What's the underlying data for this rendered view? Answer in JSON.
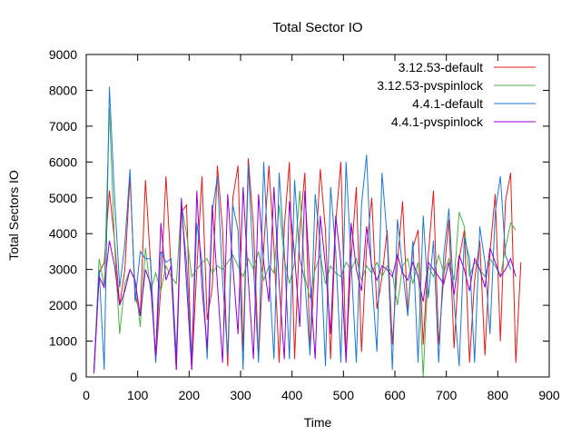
{
  "chart_data": {
    "type": "line",
    "title": "Total Sector IO",
    "xlabel": "Time",
    "ylabel": "Total Sectors IO",
    "xlim": [
      0,
      900
    ],
    "ylim": [
      0,
      9000
    ],
    "xticks": [
      0,
      100,
      200,
      300,
      400,
      500,
      600,
      700,
      800,
      900
    ],
    "yticks": [
      0,
      1000,
      2000,
      3000,
      4000,
      5000,
      6000,
      7000,
      8000,
      9000
    ],
    "xtick_labels": [
      "0",
      "100",
      "200",
      "300",
      "400",
      "500",
      "600",
      "700",
      "800",
      "900"
    ],
    "ytick_labels": [
      "0",
      "1000",
      "2000",
      "3000",
      "4000",
      "5000",
      "6000",
      "7000",
      "8000",
      "9000"
    ],
    "grid": false,
    "legend_position": "top-right",
    "series": [
      {
        "name": "3.12.53-default",
        "color": "#e41a1c",
        "x": [
          15,
          25,
          35,
          45,
          55,
          65,
          75,
          85,
          95,
          105,
          115,
          125,
          135,
          145,
          155,
          165,
          175,
          185,
          195,
          205,
          215,
          225,
          235,
          245,
          255,
          265,
          275,
          285,
          295,
          305,
          315,
          325,
          335,
          345,
          355,
          365,
          375,
          385,
          395,
          405,
          415,
          425,
          435,
          445,
          455,
          465,
          475,
          485,
          495,
          505,
          515,
          525,
          535,
          545,
          555,
          565,
          575,
          585,
          595,
          605,
          615,
          625,
          635,
          645,
          655,
          665,
          675,
          685,
          695,
          705,
          715,
          725,
          735,
          745,
          755,
          765,
          775,
          785,
          795,
          805,
          815,
          825,
          835,
          845
        ],
        "y": [
          200,
          2900,
          3200,
          5200,
          3800,
          2000,
          3000,
          5600,
          2300,
          1700,
          5500,
          3200,
          400,
          2500,
          5600,
          3000,
          200,
          4600,
          4800,
          200,
          3000,
          5600,
          1600,
          2500,
          5900,
          4100,
          300,
          5000,
          5900,
          700,
          6100,
          4200,
          500,
          3600,
          5900,
          3600,
          400,
          4200,
          6000,
          500,
          4100,
          5700,
          700,
          3300,
          5800,
          4100,
          500,
          4300,
          6000,
          500,
          3300,
          5300,
          700,
          3600,
          5000,
          1900,
          2800,
          4100,
          900,
          3200,
          4900,
          1800,
          3600,
          4100,
          900,
          3400,
          5200,
          900,
          2800,
          4400,
          800,
          3300,
          4100,
          400,
          2700,
          3800,
          600,
          3500,
          5100,
          1000,
          4900,
          5700,
          400,
          3200
        ]
      },
      {
        "name": "3.12.53-pvspinlock",
        "color": "#4daf4a",
        "x": [
          15,
          25,
          35,
          45,
          55,
          65,
          75,
          85,
          95,
          105,
          115,
          125,
          135,
          145,
          155,
          165,
          175,
          185,
          195,
          205,
          215,
          225,
          235,
          245,
          255,
          265,
          275,
          285,
          295,
          305,
          315,
          325,
          335,
          345,
          355,
          365,
          375,
          385,
          395,
          405,
          415,
          425,
          435,
          445,
          455,
          465,
          475,
          485,
          495,
          505,
          515,
          525,
          535,
          545,
          555,
          565,
          575,
          585,
          595,
          605,
          615,
          625,
          635,
          645,
          655,
          665,
          675,
          685,
          695,
          705,
          715,
          725,
          735,
          745,
          755,
          765,
          775,
          785,
          795,
          805,
          815,
          825,
          835
        ],
        "y": [
          100,
          3300,
          2500,
          7500,
          3700,
          1200,
          2600,
          3000,
          2700,
          1400,
          3600,
          2400,
          2900,
          2400,
          3100,
          2800,
          2600,
          4800,
          4000,
          2800,
          3000,
          3200,
          3300,
          2900,
          3100,
          3000,
          3200,
          3400,
          3100,
          2800,
          3300,
          3000,
          3500,
          2700,
          3100,
          2900,
          4800,
          3300,
          2600,
          3200,
          5200,
          2800,
          2200,
          3000,
          3400,
          2600,
          3100,
          2900,
          2800,
          3200,
          3000,
          3300,
          2700,
          3100,
          2900,
          3200,
          2800,
          3100,
          2900,
          2000,
          3100,
          3300,
          2600,
          3200,
          0,
          3100,
          2800,
          3400,
          2900,
          3300,
          2700,
          4600,
          4200,
          2800,
          3200,
          3000,
          2800,
          3300,
          3100,
          2800,
          3600,
          4300,
          4100
        ]
      },
      {
        "name": "4.4.1-default",
        "color": "#1f77d4",
        "x": [
          15,
          25,
          35,
          45,
          55,
          65,
          75,
          85,
          95,
          105,
          115,
          125,
          135,
          145,
          155,
          165,
          175,
          185,
          195,
          205,
          215,
          225,
          235,
          245,
          255,
          265,
          275,
          285,
          295,
          305,
          315,
          325,
          335,
          345,
          355,
          365,
          375,
          385,
          395,
          405,
          415,
          425,
          435,
          445,
          455,
          465,
          475,
          485,
          495,
          505,
          515,
          525,
          535,
          545,
          555,
          565,
          575,
          585,
          595,
          605,
          615,
          625,
          635,
          645,
          655,
          665,
          675,
          685,
          695,
          705,
          715,
          725,
          735,
          745,
          755,
          765,
          775,
          785,
          795,
          805,
          815,
          825
        ],
        "y": [
          200,
          3000,
          200,
          8100,
          5000,
          2500,
          3700,
          5800,
          2100,
          3500,
          3300,
          3300,
          400,
          3500,
          3200,
          3300,
          600,
          4700,
          3200,
          500,
          4300,
          3200,
          500,
          4600,
          5600,
          2700,
          600,
          4800,
          4100,
          200,
          5900,
          3100,
          400,
          6000,
          3000,
          500,
          5700,
          3500,
          500,
          5500,
          3300,
          2700,
          600,
          5100,
          3700,
          300,
          5300,
          3500,
          400,
          6000,
          3200,
          400,
          4800,
          6200,
          2800,
          700,
          5700,
          3900,
          200,
          4400,
          3000,
          1700,
          3800,
          400,
          4500,
          2200,
          3800,
          400,
          3400,
          4700,
          2100,
          300,
          3900,
          3300,
          400,
          4200,
          3200,
          1200,
          4600,
          5600,
          3400,
          3000
        ]
      },
      {
        "name": "4.4.1-pvspinlock",
        "color": "#9400d3",
        "x": [
          15,
          25,
          35,
          45,
          55,
          65,
          75,
          85,
          95,
          105,
          115,
          125,
          135,
          145,
          155,
          165,
          175,
          185,
          195,
          205,
          215,
          225,
          235,
          245,
          255,
          265,
          275,
          285,
          295,
          305,
          315,
          325,
          335,
          345,
          355,
          365,
          375,
          385,
          395,
          405,
          415,
          425,
          435,
          445,
          455,
          465,
          475,
          485,
          495,
          505,
          515,
          525,
          535,
          545,
          555,
          565,
          575,
          585,
          595,
          605,
          615,
          625,
          635,
          645,
          655,
          665,
          675,
          685,
          695,
          705,
          715,
          725,
          735,
          745,
          755,
          765,
          775,
          785,
          795,
          805,
          815,
          825,
          835
        ],
        "y": [
          100,
          2800,
          2500,
          3800,
          3100,
          2000,
          2400,
          3000,
          2700,
          1700,
          3000,
          2600,
          600,
          4300,
          2700,
          3100,
          200,
          5000,
          2600,
          200,
          5200,
          2500,
          800,
          4800,
          2600,
          400,
          5100,
          3100,
          1200,
          5300,
          2700,
          500,
          5100,
          3200,
          2100,
          5300,
          2600,
          500,
          4900,
          3400,
          1400,
          5200,
          2700,
          500,
          4500,
          3100,
          1200,
          4500,
          3200,
          400,
          4300,
          3000,
          2400,
          4200,
          3100,
          2700,
          3100,
          3000,
          2800,
          3400,
          2900,
          2700,
          3200,
          2800,
          2100,
          3200,
          3000,
          2800,
          2600,
          3200,
          2300,
          3400,
          3000,
          2400,
          3300,
          3000,
          2500,
          3600,
          3200,
          2800,
          3000,
          3300,
          2800
        ]
      }
    ]
  }
}
